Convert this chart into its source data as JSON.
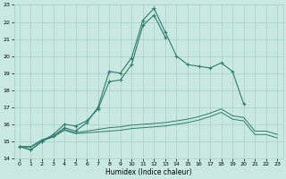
{
  "xlabel": "Humidex (Indice chaleur)",
  "x_values": [
    0,
    1,
    2,
    3,
    4,
    5,
    6,
    7,
    8,
    9,
    10,
    11,
    12,
    13,
    14,
    15,
    16,
    17,
    18,
    19,
    20,
    21,
    22,
    23
  ],
  "line1": [
    14.7,
    14.5,
    15.0,
    15.3,
    15.8,
    15.6,
    16.1,
    17.0,
    19.1,
    19.0,
    19.9,
    22.1,
    22.8,
    21.4,
    20.0,
    19.5,
    19.4,
    19.3,
    19.6,
    19.1,
    17.2,
    null,
    null,
    null
  ],
  "line2": [
    14.7,
    14.5,
    15.0,
    15.4,
    16.0,
    15.9,
    16.2,
    16.9,
    18.5,
    18.6,
    19.5,
    21.8,
    22.4,
    21.1,
    null,
    null,
    null,
    null,
    null,
    null,
    null,
    null,
    null,
    null
  ],
  "line3": [
    14.7,
    14.7,
    15.1,
    15.3,
    15.7,
    15.5,
    15.6,
    15.7,
    15.8,
    15.85,
    15.95,
    16.0,
    16.05,
    16.1,
    16.2,
    16.3,
    16.45,
    16.65,
    16.9,
    16.5,
    16.4,
    15.6,
    15.6,
    15.4
  ],
  "line4": [
    14.7,
    14.65,
    15.05,
    15.25,
    15.65,
    15.45,
    15.5,
    15.55,
    15.6,
    15.65,
    15.75,
    15.8,
    15.85,
    15.9,
    16.0,
    16.1,
    16.25,
    16.45,
    16.7,
    16.3,
    16.2,
    15.4,
    15.4,
    15.2
  ],
  "line_color": "#2E7D6E",
  "bg_color": "#C8E8E0",
  "grid_color": "#AACEC8",
  "ylim": [
    14,
    23
  ],
  "xlim": [
    -0.5,
    23.5
  ],
  "yticks": [
    14,
    15,
    16,
    17,
    18,
    19,
    20,
    21,
    22,
    23
  ],
  "xticks": [
    0,
    1,
    2,
    3,
    4,
    5,
    6,
    7,
    8,
    9,
    10,
    11,
    12,
    13,
    14,
    15,
    16,
    17,
    18,
    19,
    20,
    21,
    22,
    23
  ]
}
